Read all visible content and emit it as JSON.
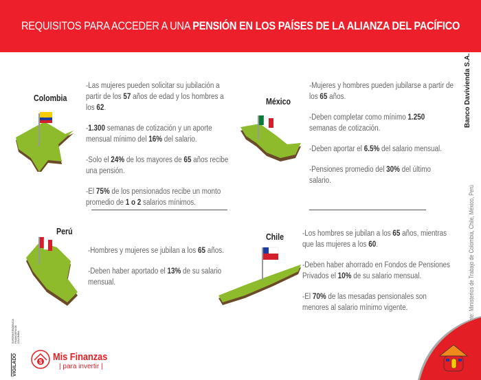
{
  "header": {
    "title_regular": "REQUISITOS PARA ACCEDER A UNA ",
    "title_bold": "PENSIÓN EN LOS PAÍSES DE LA ALIANZA DEL PACÍFICO",
    "background": "#ec1f2b"
  },
  "countries": [
    {
      "name": "Colombia",
      "flag": "colombia-flag-icon",
      "paragraphs": [
        [
          {
            "t": "-Las mujeres pueden solicitar su jubilación a partir de los "
          },
          {
            "t": "57",
            "b": true
          },
          {
            "t": " años de edad y los hombres a los "
          },
          {
            "t": "62",
            "b": true
          },
          {
            "t": "."
          }
        ],
        [
          {
            "t": "-"
          },
          {
            "t": "1.300",
            "b": true
          },
          {
            "t": " semanas de cotización y un aporte mensual mínimo del "
          },
          {
            "t": "16%",
            "b": true
          },
          {
            "t": " del salario."
          }
        ],
        [
          {
            "t": "-Solo el "
          },
          {
            "t": "24%",
            "b": true
          },
          {
            "t": " de los mayores de "
          },
          {
            "t": "65",
            "b": true
          },
          {
            "t": " años recibe una pensión."
          }
        ],
        [
          {
            "t": "-El "
          },
          {
            "t": "75%",
            "b": true
          },
          {
            "t": " de los pensionados recibe un monto promedio de "
          },
          {
            "t": "1 o 2",
            "b": true
          },
          {
            "t": " salarios mínimos."
          }
        ]
      ]
    },
    {
      "name": "México",
      "flag": "mexico-flag-icon",
      "paragraphs": [
        [
          {
            "t": "-Mujeres y hombres pueden jubilarse a partir de los "
          },
          {
            "t": "65",
            "b": true
          },
          {
            "t": " años."
          }
        ],
        [
          {
            "t": "-Deben completar como mínimo "
          },
          {
            "t": "1.250",
            "b": true
          },
          {
            "t": " semanas de cotización."
          }
        ],
        [
          {
            "t": "-Deben aportar el "
          },
          {
            "t": "6.5%",
            "b": true
          },
          {
            "t": " del salario mensual."
          }
        ],
        [
          {
            "t": "-Pensiones promedio del "
          },
          {
            "t": "30%",
            "b": true
          },
          {
            "t": " del último salario."
          }
        ]
      ]
    },
    {
      "name": "Perú",
      "flag": "peru-flag-icon",
      "paragraphs": [
        [
          {
            "t": "-Hombres y mujeres se jubilan a los "
          },
          {
            "t": "65",
            "b": true
          },
          {
            "t": " años."
          }
        ],
        [
          {
            "t": "-Deben haber aportado el "
          },
          {
            "t": "13%",
            "b": true
          },
          {
            "t": " de su salario mensual."
          }
        ]
      ]
    },
    {
      "name": "Chile",
      "flag": "chile-flag-icon",
      "paragraphs": [
        [
          {
            "t": "-Los hombres se jubilan a los "
          },
          {
            "t": "65",
            "b": true
          },
          {
            "t": " años, mientras que las mujeres a los "
          },
          {
            "t": "60",
            "b": true
          },
          {
            "t": "."
          }
        ],
        [
          {
            "t": "-Deben haber ahorrado en Fondos de Pensiones Privados el "
          },
          {
            "t": "10%",
            "b": true
          },
          {
            "t": " de su salario mensual."
          }
        ],
        [
          {
            "t": "-El "
          },
          {
            "t": "70%",
            "b": true
          },
          {
            "t": " de las mesadas pensionales son  menores al salario mínimo vigente."
          }
        ]
      ]
    }
  ],
  "side": {
    "bank": "Banco Davivienda S.A.",
    "source": "Fuente: Ministerios de Trabajo de Colombia, Chile, México, Perú"
  },
  "footer": {
    "brand": "Mis Finanzas",
    "tagline": "para invertir",
    "vigilado": "VIGILADO",
    "vigilado_sub": "SUPERINTENDENCIA FINANCIERA DE COLOMBIA",
    "brand_color": "#e31e24"
  }
}
